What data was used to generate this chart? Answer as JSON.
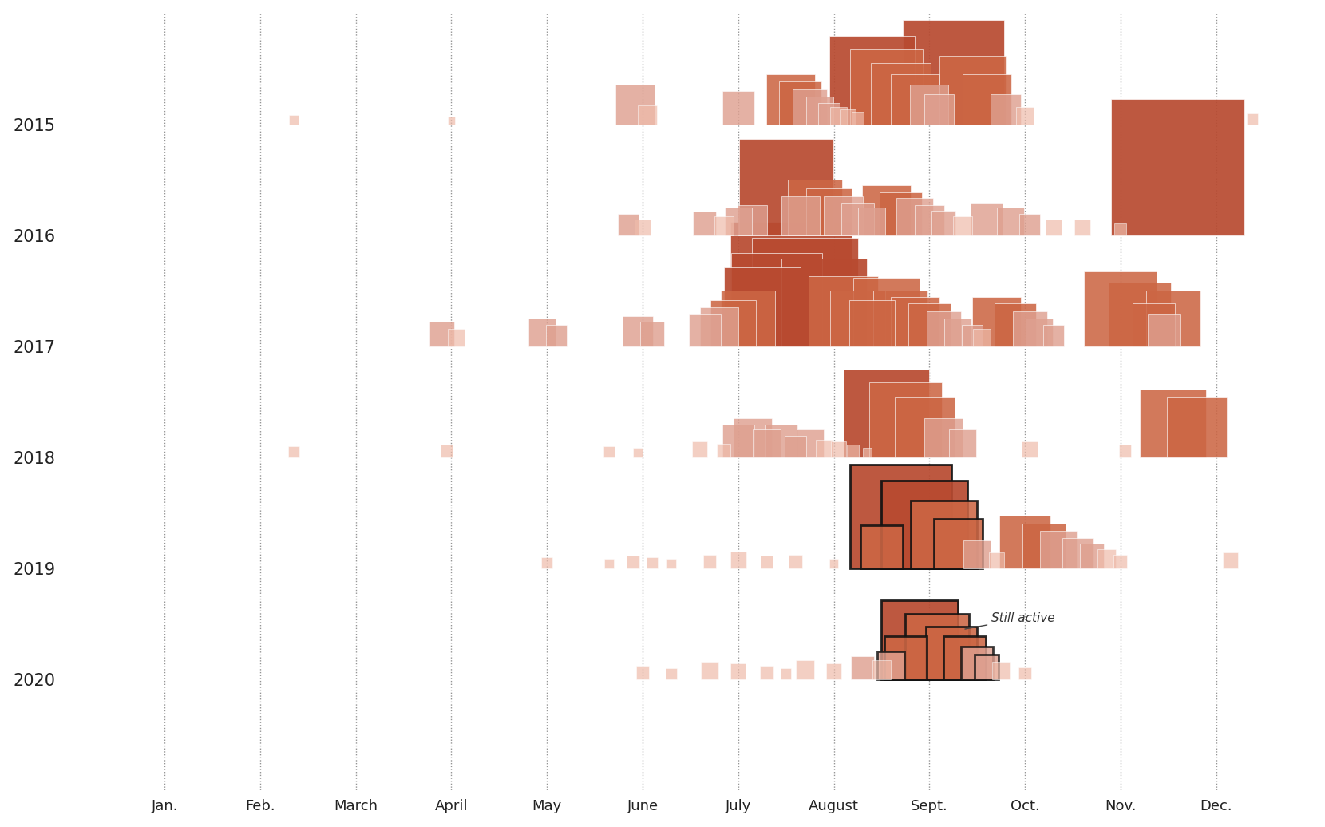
{
  "bg_color": "#ffffff",
  "fire_color_dark": "#b84a30",
  "fire_color_mid": "#cc6644",
  "fire_color_light": "#dea090",
  "fire_color_faint": "#eebbaa",
  "years": [
    2015,
    2016,
    2017,
    2018,
    2019,
    2020
  ],
  "month_labels": [
    "Jan.",
    "Feb.",
    "March",
    "April",
    "May",
    "June",
    "July",
    "August",
    "Sept.",
    "Oct.",
    "Nov.",
    "Dec."
  ],
  "annotation_text": "Still active",
  "fires": [
    {
      "year": 2015,
      "month": 1.85,
      "acres": 3000,
      "outline": false
    },
    {
      "year": 2015,
      "month": 3.5,
      "acres": 2000,
      "outline": false
    },
    {
      "year": 2015,
      "month": 5.42,
      "acres": 50000,
      "outline": false
    },
    {
      "year": 2015,
      "month": 5.55,
      "acres": 12000,
      "outline": false
    },
    {
      "year": 2015,
      "month": 6.5,
      "acres": 35000,
      "outline": false
    },
    {
      "year": 2015,
      "month": 7.05,
      "acres": 80000,
      "outline": false
    },
    {
      "year": 2015,
      "month": 7.15,
      "acres": 60000,
      "outline": false
    },
    {
      "year": 2015,
      "month": 7.25,
      "acres": 40000,
      "outline": false
    },
    {
      "year": 2015,
      "month": 7.35,
      "acres": 25000,
      "outline": false
    },
    {
      "year": 2015,
      "month": 7.45,
      "acres": 15000,
      "outline": false
    },
    {
      "year": 2015,
      "month": 7.55,
      "acres": 10000,
      "outline": false
    },
    {
      "year": 2015,
      "month": 7.65,
      "acres": 7000,
      "outline": false
    },
    {
      "year": 2015,
      "month": 7.75,
      "acres": 5000,
      "outline": false
    },
    {
      "year": 2015,
      "month": 7.9,
      "acres": 250000,
      "outline": false
    },
    {
      "year": 2015,
      "month": 8.05,
      "acres": 180000,
      "outline": false
    },
    {
      "year": 2015,
      "month": 8.2,
      "acres": 120000,
      "outline": false
    },
    {
      "year": 2015,
      "month": 8.35,
      "acres": 80000,
      "outline": false
    },
    {
      "year": 2015,
      "month": 8.5,
      "acres": 50000,
      "outline": false
    },
    {
      "year": 2015,
      "month": 8.6,
      "acres": 30000,
      "outline": false
    },
    {
      "year": 2015,
      "month": 8.75,
      "acres": 350000,
      "outline": false
    },
    {
      "year": 2015,
      "month": 8.95,
      "acres": 150000,
      "outline": false
    },
    {
      "year": 2015,
      "month": 9.1,
      "acres": 80000,
      "outline": false
    },
    {
      "year": 2015,
      "month": 9.3,
      "acres": 30000,
      "outline": false
    },
    {
      "year": 2015,
      "month": 9.5,
      "acres": 10000,
      "outline": false
    },
    {
      "year": 2015,
      "month": 11.88,
      "acres": 4000,
      "outline": false
    },
    {
      "year": 2016,
      "month": 5.35,
      "acres": 15000,
      "outline": false
    },
    {
      "year": 2016,
      "month": 5.5,
      "acres": 8000,
      "outline": false
    },
    {
      "year": 2016,
      "month": 6.15,
      "acres": 18000,
      "outline": false
    },
    {
      "year": 2016,
      "month": 6.35,
      "acres": 12000,
      "outline": false
    },
    {
      "year": 2016,
      "month": 6.5,
      "acres": 25000,
      "outline": false
    },
    {
      "year": 2016,
      "month": 6.65,
      "acres": 30000,
      "outline": false
    },
    {
      "year": 2016,
      "month": 7.0,
      "acres": 300000,
      "outline": false
    },
    {
      "year": 2016,
      "month": 7.15,
      "acres": 50000,
      "outline": false
    },
    {
      "year": 2016,
      "month": 7.3,
      "acres": 100000,
      "outline": false
    },
    {
      "year": 2016,
      "month": 7.45,
      "acres": 70000,
      "outline": false
    },
    {
      "year": 2016,
      "month": 7.6,
      "acres": 50000,
      "outline": false
    },
    {
      "year": 2016,
      "month": 7.75,
      "acres": 35000,
      "outline": false
    },
    {
      "year": 2016,
      "month": 7.9,
      "acres": 25000,
      "outline": false
    },
    {
      "year": 2016,
      "month": 8.05,
      "acres": 80000,
      "outline": false
    },
    {
      "year": 2016,
      "month": 8.2,
      "acres": 60000,
      "outline": false
    },
    {
      "year": 2016,
      "month": 8.35,
      "acres": 45000,
      "outline": false
    },
    {
      "year": 2016,
      "month": 8.5,
      "acres": 30000,
      "outline": false
    },
    {
      "year": 2016,
      "month": 8.65,
      "acres": 20000,
      "outline": false
    },
    {
      "year": 2016,
      "month": 8.85,
      "acres": 12000,
      "outline": false
    },
    {
      "year": 2016,
      "month": 9.1,
      "acres": 35000,
      "outline": false
    },
    {
      "year": 2016,
      "month": 9.35,
      "acres": 25000,
      "outline": false
    },
    {
      "year": 2016,
      "month": 9.55,
      "acres": 15000,
      "outline": false
    },
    {
      "year": 2016,
      "month": 9.8,
      "acres": 8000,
      "outline": false
    },
    {
      "year": 2016,
      "month": 10.1,
      "acres": 8000,
      "outline": false
    },
    {
      "year": 2016,
      "month": 10.5,
      "acres": 5000,
      "outline": false
    },
    {
      "year": 2016,
      "month": 11.1,
      "acres": 600000,
      "outline": false
    },
    {
      "year": 2017,
      "month": 3.4,
      "acres": 20000,
      "outline": false
    },
    {
      "year": 2017,
      "month": 3.55,
      "acres": 10000,
      "outline": false
    },
    {
      "year": 2017,
      "month": 4.45,
      "acres": 25000,
      "outline": false
    },
    {
      "year": 2017,
      "month": 4.6,
      "acres": 15000,
      "outline": false
    },
    {
      "year": 2017,
      "month": 5.45,
      "acres": 30000,
      "outline": false
    },
    {
      "year": 2017,
      "month": 5.6,
      "acres": 20000,
      "outline": false
    },
    {
      "year": 2017,
      "month": 6.15,
      "acres": 35000,
      "outline": false
    },
    {
      "year": 2017,
      "month": 6.3,
      "acres": 50000,
      "outline": false
    },
    {
      "year": 2017,
      "month": 6.45,
      "acres": 70000,
      "outline": false
    },
    {
      "year": 2017,
      "month": 6.6,
      "acres": 100000,
      "outline": false
    },
    {
      "year": 2017,
      "month": 6.75,
      "acres": 200000,
      "outline": false
    },
    {
      "year": 2017,
      "month": 6.9,
      "acres": 280000,
      "outline": false
    },
    {
      "year": 2017,
      "month": 7.05,
      "acres": 500000,
      "outline": false
    },
    {
      "year": 2017,
      "month": 7.2,
      "acres": 380000,
      "outline": false
    },
    {
      "year": 2017,
      "month": 7.4,
      "acres": 250000,
      "outline": false
    },
    {
      "year": 2017,
      "month": 7.6,
      "acres": 160000,
      "outline": false
    },
    {
      "year": 2017,
      "month": 7.75,
      "acres": 100000,
      "outline": false
    },
    {
      "year": 2017,
      "month": 7.9,
      "acres": 70000,
      "outline": false
    },
    {
      "year": 2017,
      "month": 8.05,
      "acres": 150000,
      "outline": false
    },
    {
      "year": 2017,
      "month": 8.2,
      "acres": 100000,
      "outline": false
    },
    {
      "year": 2017,
      "month": 8.35,
      "acres": 80000,
      "outline": false
    },
    {
      "year": 2017,
      "month": 8.5,
      "acres": 60000,
      "outline": false
    },
    {
      "year": 2017,
      "month": 8.65,
      "acres": 40000,
      "outline": false
    },
    {
      "year": 2017,
      "month": 8.8,
      "acres": 25000,
      "outline": false
    },
    {
      "year": 2017,
      "month": 8.95,
      "acres": 15000,
      "outline": false
    },
    {
      "year": 2017,
      "month": 9.05,
      "acres": 10000,
      "outline": false
    },
    {
      "year": 2017,
      "month": 9.2,
      "acres": 80000,
      "outline": false
    },
    {
      "year": 2017,
      "month": 9.4,
      "acres": 60000,
      "outline": false
    },
    {
      "year": 2017,
      "month": 9.55,
      "acres": 40000,
      "outline": false
    },
    {
      "year": 2017,
      "month": 9.65,
      "acres": 25000,
      "outline": false
    },
    {
      "year": 2017,
      "month": 9.8,
      "acres": 15000,
      "outline": false
    },
    {
      "year": 2017,
      "month": 10.5,
      "acres": 180000,
      "outline": false
    },
    {
      "year": 2017,
      "month": 10.7,
      "acres": 130000,
      "outline": false
    },
    {
      "year": 2017,
      "month": 10.85,
      "acres": 60000,
      "outline": false
    },
    {
      "year": 2017,
      "month": 10.95,
      "acres": 35000,
      "outline": false
    },
    {
      "year": 2017,
      "month": 11.05,
      "acres": 100000,
      "outline": false
    },
    {
      "year": 2018,
      "month": 1.85,
      "acres": 4000,
      "outline": false
    },
    {
      "year": 2018,
      "month": 3.45,
      "acres": 5000,
      "outline": false
    },
    {
      "year": 2018,
      "month": 5.15,
      "acres": 4000,
      "outline": false
    },
    {
      "year": 2018,
      "month": 5.45,
      "acres": 3000,
      "outline": false
    },
    {
      "year": 2018,
      "month": 6.1,
      "acres": 8000,
      "outline": false
    },
    {
      "year": 2018,
      "month": 6.35,
      "acres": 6000,
      "outline": false
    },
    {
      "year": 2018,
      "month": 6.5,
      "acres": 35000,
      "outline": false
    },
    {
      "year": 2018,
      "month": 6.65,
      "acres": 50000,
      "outline": false
    },
    {
      "year": 2018,
      "month": 6.8,
      "acres": 25000,
      "outline": false
    },
    {
      "year": 2018,
      "month": 6.95,
      "acres": 35000,
      "outline": false
    },
    {
      "year": 2018,
      "month": 7.1,
      "acres": 15000,
      "outline": false
    },
    {
      "year": 2018,
      "month": 7.25,
      "acres": 25000,
      "outline": false
    },
    {
      "year": 2018,
      "month": 7.4,
      "acres": 10000,
      "outline": false
    },
    {
      "year": 2018,
      "month": 7.55,
      "acres": 8000,
      "outline": false
    },
    {
      "year": 2018,
      "month": 7.7,
      "acres": 5000,
      "outline": false
    },
    {
      "year": 2018,
      "month": 7.85,
      "acres": 3000,
      "outline": false
    },
    {
      "year": 2018,
      "month": 8.05,
      "acres": 250000,
      "outline": false
    },
    {
      "year": 2018,
      "month": 8.25,
      "acres": 180000,
      "outline": false
    },
    {
      "year": 2018,
      "month": 8.45,
      "acres": 120000,
      "outline": false
    },
    {
      "year": 2018,
      "month": 8.65,
      "acres": 50000,
      "outline": false
    },
    {
      "year": 2018,
      "month": 8.85,
      "acres": 25000,
      "outline": false
    },
    {
      "year": 2018,
      "month": 9.55,
      "acres": 8000,
      "outline": false
    },
    {
      "year": 2018,
      "month": 10.55,
      "acres": 5000,
      "outline": false
    },
    {
      "year": 2018,
      "month": 11.05,
      "acres": 150000,
      "outline": false
    },
    {
      "year": 2018,
      "month": 11.3,
      "acres": 120000,
      "outline": false
    },
    {
      "year": 2019,
      "month": 4.5,
      "acres": 4000,
      "outline": false
    },
    {
      "year": 2019,
      "month": 5.15,
      "acres": 3000,
      "outline": false
    },
    {
      "year": 2019,
      "month": 5.4,
      "acres": 5000,
      "outline": false
    },
    {
      "year": 2019,
      "month": 5.6,
      "acres": 4000,
      "outline": false
    },
    {
      "year": 2019,
      "month": 5.8,
      "acres": 3000,
      "outline": false
    },
    {
      "year": 2019,
      "month": 6.2,
      "acres": 6000,
      "outline": false
    },
    {
      "year": 2019,
      "month": 6.5,
      "acres": 9000,
      "outline": false
    },
    {
      "year": 2019,
      "month": 6.8,
      "acres": 5000,
      "outline": false
    },
    {
      "year": 2019,
      "month": 7.1,
      "acres": 6000,
      "outline": false
    },
    {
      "year": 2019,
      "month": 7.5,
      "acres": 3000,
      "outline": false
    },
    {
      "year": 2019,
      "month": 8.0,
      "acres": 60000,
      "outline": true
    },
    {
      "year": 2019,
      "month": 8.2,
      "acres": 350000,
      "outline": true
    },
    {
      "year": 2019,
      "month": 8.45,
      "acres": 250000,
      "outline": true
    },
    {
      "year": 2019,
      "month": 8.65,
      "acres": 150000,
      "outline": true
    },
    {
      "year": 2019,
      "month": 8.8,
      "acres": 80000,
      "outline": true
    },
    {
      "year": 2019,
      "month": 9.0,
      "acres": 25000,
      "outline": false
    },
    {
      "year": 2019,
      "month": 9.2,
      "acres": 8000,
      "outline": false
    },
    {
      "year": 2019,
      "month": 9.5,
      "acres": 90000,
      "outline": false
    },
    {
      "year": 2019,
      "month": 9.7,
      "acres": 65000,
      "outline": false
    },
    {
      "year": 2019,
      "month": 9.85,
      "acres": 45000,
      "outline": false
    },
    {
      "year": 2019,
      "month": 10.05,
      "acres": 30000,
      "outline": false
    },
    {
      "year": 2019,
      "month": 10.2,
      "acres": 20000,
      "outline": false
    },
    {
      "year": 2019,
      "month": 10.35,
      "acres": 12000,
      "outline": false
    },
    {
      "year": 2019,
      "month": 10.5,
      "acres": 6000,
      "outline": false
    },
    {
      "year": 2019,
      "month": 11.65,
      "acres": 8000,
      "outline": false
    },
    {
      "year": 2020,
      "month": 5.5,
      "acres": 6000,
      "outline": false
    },
    {
      "year": 2020,
      "month": 5.8,
      "acres": 4000,
      "outline": false
    },
    {
      "year": 2020,
      "month": 6.2,
      "acres": 10000,
      "outline": false
    },
    {
      "year": 2020,
      "month": 6.5,
      "acres": 8000,
      "outline": false
    },
    {
      "year": 2020,
      "month": 6.8,
      "acres": 6000,
      "outline": false
    },
    {
      "year": 2020,
      "month": 7.0,
      "acres": 4000,
      "outline": false
    },
    {
      "year": 2020,
      "month": 7.2,
      "acres": 12000,
      "outline": false
    },
    {
      "year": 2020,
      "month": 7.5,
      "acres": 8000,
      "outline": false
    },
    {
      "year": 2020,
      "month": 7.8,
      "acres": 18000,
      "outline": false
    },
    {
      "year": 2020,
      "month": 8.0,
      "acres": 12000,
      "outline": false
    },
    {
      "year": 2020,
      "month": 8.1,
      "acres": 25000,
      "outline": true
    },
    {
      "year": 2020,
      "month": 8.25,
      "acres": 60000,
      "outline": true
    },
    {
      "year": 2020,
      "month": 8.4,
      "acres": 200000,
      "outline": true
    },
    {
      "year": 2020,
      "month": 8.58,
      "acres": 140000,
      "outline": true
    },
    {
      "year": 2020,
      "month": 8.73,
      "acres": 90000,
      "outline": true
    },
    {
      "year": 2020,
      "month": 8.87,
      "acres": 60000,
      "outline": true
    },
    {
      "year": 2020,
      "month": 9.0,
      "acres": 35000,
      "outline": true
    },
    {
      "year": 2020,
      "month": 9.1,
      "acres": 20000,
      "outline": true
    },
    {
      "year": 2020,
      "month": 9.25,
      "acres": 10000,
      "outline": false
    },
    {
      "year": 2020,
      "month": 9.5,
      "acres": 5000,
      "outline": false
    }
  ]
}
